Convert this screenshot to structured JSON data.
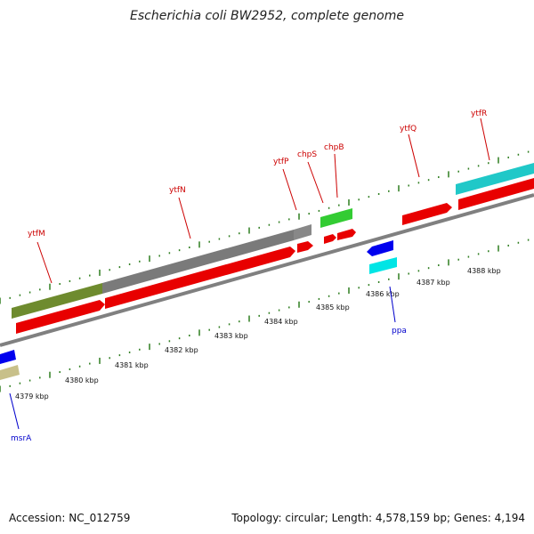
{
  "title": "Escherichia coli BW2952, complete genome",
  "footer": {
    "accession": "Accession: NC_012759",
    "stats": "Topology: circular; Length: 4,578,159 bp; Genes: 4,194"
  },
  "colors": {
    "forward_label": "#cc0000",
    "reverse_label": "#0000cc",
    "backbone": "#808080",
    "tick": "#2e7d1f",
    "cds": "#e80000",
    "ytfM": "#6e8b2e",
    "ytfN": "#7a7a7a",
    "ytfP": "#7a7a7a",
    "chpB": "#33cc33",
    "ytfR": "#20c8c8",
    "ppa_top": "#0000ee",
    "ppa_bottom": "#00e5e5",
    "msrA_top": "#0000ee",
    "msrA_bottom": "#c8c08a"
  },
  "kbp_labels": [
    "4379 kbp",
    "4380 kbp",
    "4381 kbp",
    "4382 kbp",
    "4383 kbp",
    "4384 kbp",
    "4385 kbp",
    "4386 kbp",
    "4387 kbp",
    "4388 kbp"
  ],
  "genes_forward": [
    "ytfM",
    "ytfN",
    "ytfP",
    "chpS",
    "chpB",
    "ytfQ",
    "ytfR"
  ],
  "genes_reverse": [
    "ppa",
    "msrA"
  ]
}
